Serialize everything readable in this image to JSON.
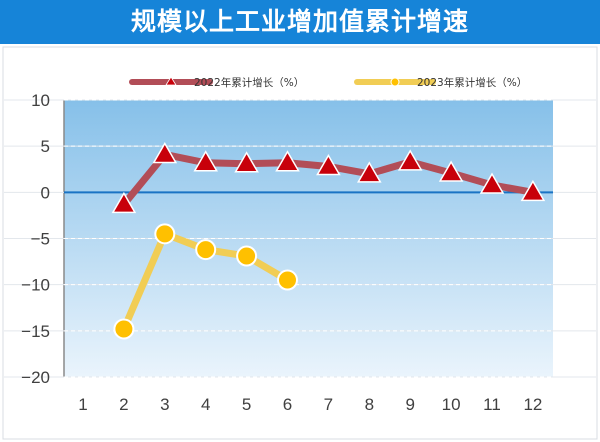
{
  "header": {
    "title": "规模以上工业增加值累计增速"
  },
  "colors": {
    "header_bg": "#1684d8",
    "series_2022": "#b24d57",
    "series_2023": "#f1cd55",
    "marker_2022": "#c8000a",
    "marker_2023": "#ffc000",
    "zero_line": "#1a73c4"
  },
  "chart_data": {
    "type": "line",
    "categories": [
      "1",
      "2",
      "3",
      "4",
      "5",
      "6",
      "7",
      "8",
      "9",
      "10",
      "11",
      "12"
    ],
    "ylim": [
      -20,
      10
    ],
    "yticks": [
      10,
      5,
      0,
      -5,
      -10,
      -15,
      -20
    ],
    "grid": true,
    "legend": "top-center",
    "series": [
      {
        "name": "2022年累计增长（%）",
        "marker": "triangle",
        "values": [
          null,
          -1.3,
          4.1,
          3.2,
          3.1,
          3.2,
          2.8,
          2.0,
          3.3,
          2.1,
          0.8,
          0.0
        ]
      },
      {
        "name": "2023年累计增长（%）",
        "marker": "circle",
        "values": [
          null,
          -14.8,
          -4.5,
          -6.2,
          -6.9,
          -9.5,
          null,
          null,
          null,
          null,
          null,
          null
        ]
      }
    ]
  }
}
